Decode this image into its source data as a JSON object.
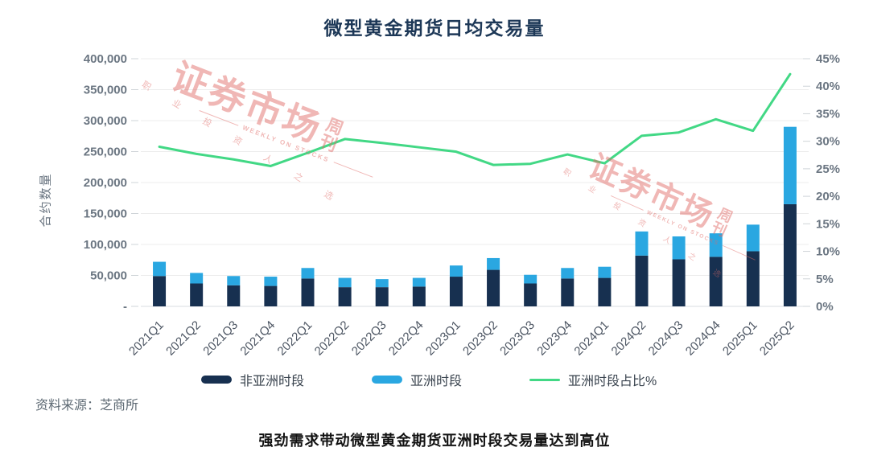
{
  "title": "微型黄金期货日均交易量",
  "source": "资料来源：芝商所",
  "caption": "强劲需求带动微型黄金期货亚洲时段交易量达到高位",
  "watermark": {
    "main": "证券市场",
    "suffix": "周刊",
    "sub": "职 业 投 资 人 之 选",
    "latin": "WEEKLY ON STOCKS",
    "color": "#e06a66"
  },
  "chart_data": {
    "type": "bar",
    "stacked": true,
    "has_line_overlay": true,
    "title": "微型黄金期货日均交易量",
    "ylabel_left": "合约数量",
    "grid": true,
    "legend_position": "bottom",
    "categories": [
      "2021Q1",
      "2021Q2",
      "2021Q3",
      "2021Q4",
      "2022Q1",
      "2022Q2",
      "2022Q3",
      "2022Q4",
      "2023Q1",
      "2023Q2",
      "2023Q3",
      "2023Q4",
      "2024Q1",
      "2024Q2",
      "2024Q3",
      "2024Q4",
      "2025Q1",
      "2025Q2"
    ],
    "series": [
      {
        "name": "非亚洲时段",
        "type": "bar",
        "axis": "left",
        "color": "#173050",
        "values": [
          49000,
          37000,
          34000,
          33000,
          45000,
          31000,
          31000,
          32000,
          48000,
          59000,
          37000,
          45000,
          46000,
          82000,
          76000,
          80000,
          89000,
          165000
        ]
      },
      {
        "name": "亚洲时段",
        "type": "bar",
        "axis": "left",
        "color": "#2aa7e1",
        "values": [
          23000,
          17000,
          15000,
          15000,
          17000,
          15000,
          13000,
          14000,
          18000,
          19000,
          14000,
          17000,
          18000,
          39000,
          37000,
          38000,
          43000,
          125000
        ]
      },
      {
        "name": "亚洲时段占比%",
        "type": "line",
        "axis": "right",
        "color": "#42d885",
        "values": [
          29.0,
          27.7,
          26.7,
          25.5,
          27.9,
          30.4,
          29.7,
          28.9,
          28.1,
          25.7,
          25.9,
          27.6,
          26.0,
          31.0,
          31.6,
          34.0,
          31.9,
          42.2
        ]
      }
    ],
    "axes": {
      "left": {
        "min": 0,
        "max": 400000,
        "tick_step": 50000,
        "tick_labels": [
          "-",
          "50,000",
          "100,000",
          "150,000",
          "200,000",
          "250,000",
          "300,000",
          "350,000",
          "400,000"
        ]
      },
      "right": {
        "min": 0,
        "max": 45,
        "tick_step": 5,
        "unit": "%",
        "tick_labels": [
          "0%",
          "5%",
          "10%",
          "15%",
          "20%",
          "25%",
          "30%",
          "35%",
          "40%",
          "45%"
        ]
      }
    }
  }
}
